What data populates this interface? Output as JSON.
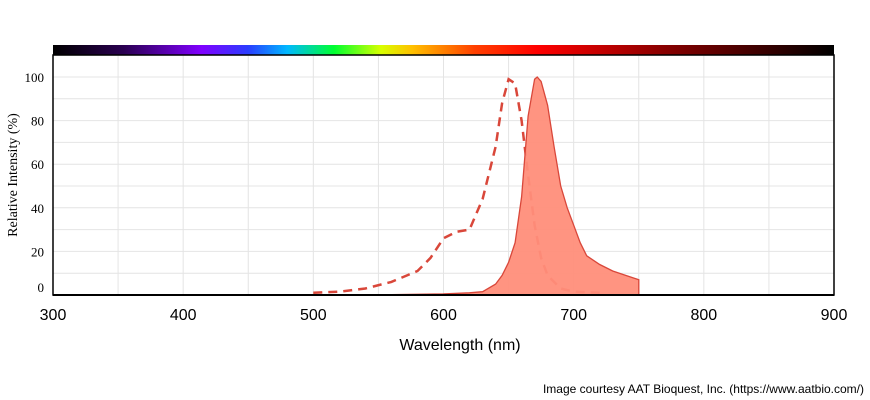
{
  "chart_data": {
    "type": "area",
    "title": "",
    "xlabel": "Wavelength (nm)",
    "ylabel": "Relative Intensity (%)",
    "xlim": [
      300,
      900
    ],
    "ylim": [
      0,
      110
    ],
    "x_ticks": [
      300,
      400,
      500,
      600,
      700,
      800,
      900
    ],
    "y_ticks": [
      0,
      20,
      40,
      60,
      80,
      100
    ],
    "grid": true,
    "legend": "none",
    "spectrum_bar": true,
    "series": [
      {
        "style": "dashed-line",
        "color": "#d9473a",
        "points": [
          [
            500,
            1
          ],
          [
            520,
            1.5
          ],
          [
            540,
            3
          ],
          [
            560,
            6
          ],
          [
            580,
            11
          ],
          [
            590,
            17
          ],
          [
            600,
            26
          ],
          [
            610,
            29
          ],
          [
            620,
            30
          ],
          [
            630,
            44
          ],
          [
            640,
            68
          ],
          [
            645,
            88
          ],
          [
            650,
            99
          ],
          [
            655,
            97
          ],
          [
            660,
            80
          ],
          [
            665,
            55
          ],
          [
            670,
            32
          ],
          [
            675,
            17
          ],
          [
            680,
            9
          ],
          [
            690,
            3
          ],
          [
            700,
            1.5
          ],
          [
            720,
            1
          ]
        ]
      },
      {
        "style": "filled-area",
        "color": "#d9473a",
        "fill": "#ff8e7a",
        "points": [
          [
            500,
            0
          ],
          [
            560,
            0.2
          ],
          [
            600,
            0.5
          ],
          [
            620,
            1
          ],
          [
            630,
            1.5
          ],
          [
            640,
            5
          ],
          [
            645,
            9
          ],
          [
            650,
            15
          ],
          [
            655,
            24
          ],
          [
            660,
            45
          ],
          [
            665,
            82
          ],
          [
            670,
            99
          ],
          [
            672,
            100
          ],
          [
            675,
            98
          ],
          [
            680,
            87
          ],
          [
            685,
            68
          ],
          [
            690,
            50
          ],
          [
            695,
            40
          ],
          [
            700,
            32
          ],
          [
            705,
            24
          ],
          [
            710,
            18
          ],
          [
            720,
            14
          ],
          [
            730,
            11
          ],
          [
            740,
            9
          ],
          [
            750,
            7
          ],
          [
            750,
            0
          ]
        ]
      }
    ]
  },
  "credit": "Image courtesy AAT Bioquest, Inc. (https://www.aatbio.com/)"
}
